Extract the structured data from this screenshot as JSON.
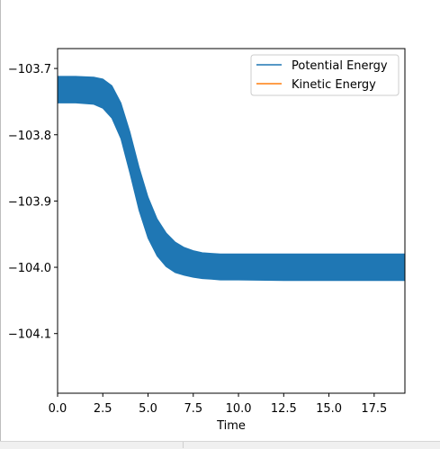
{
  "chart_data": {
    "type": "line",
    "title": "",
    "xlabel": "Time",
    "ylabel": "",
    "xlim": [
      0,
      19.2
    ],
    "ylim": [
      -104.19,
      -103.67
    ],
    "x_ticks": [
      0.0,
      2.5,
      5.0,
      7.5,
      10.0,
      12.5,
      15.0,
      17.5
    ],
    "x_tick_labels": [
      "0.0",
      "2.5",
      "5.0",
      "7.5",
      "10.0",
      "12.5",
      "15.0",
      "17.5"
    ],
    "y_ticks": [
      -103.7,
      -103.8,
      -103.9,
      -104.0,
      -104.1
    ],
    "y_tick_labels": [
      "−103.7",
      "−103.8",
      "−103.9",
      "−104.0",
      "−104.1"
    ],
    "grid": false,
    "legend_position": "upper right",
    "series": [
      {
        "name": "Potential Energy",
        "color": "#1f77b4",
        "description_of_signal": "rapid oscillation; band envelope given as upper/lower values",
        "x": [
          0.0,
          1.0,
          2.0,
          2.5,
          3.0,
          3.5,
          4.0,
          4.5,
          5.0,
          5.5,
          6.0,
          6.5,
          7.0,
          7.5,
          8.0,
          8.5,
          9.0,
          10.0,
          12.5,
          15.0,
          17.5,
          19.2
        ],
        "upper": [
          -103.712,
          -103.712,
          -103.713,
          -103.716,
          -103.726,
          -103.752,
          -103.796,
          -103.849,
          -103.894,
          -103.927,
          -103.948,
          -103.962,
          -103.97,
          -103.975,
          -103.978,
          -103.979,
          -103.98,
          -103.98,
          -103.98,
          -103.98,
          -103.98,
          -103.98
        ],
        "lower": [
          -103.752,
          -103.752,
          -103.754,
          -103.76,
          -103.775,
          -103.806,
          -103.858,
          -103.914,
          -103.956,
          -103.983,
          -103.999,
          -104.008,
          -104.012,
          -104.015,
          -104.017,
          -104.018,
          -104.019,
          -104.019,
          -104.02,
          -104.02,
          -104.02,
          -104.02
        ]
      },
      {
        "name": "Kinetic Energy",
        "color": "#ff7f0e",
        "x": [],
        "y": []
      }
    ]
  }
}
